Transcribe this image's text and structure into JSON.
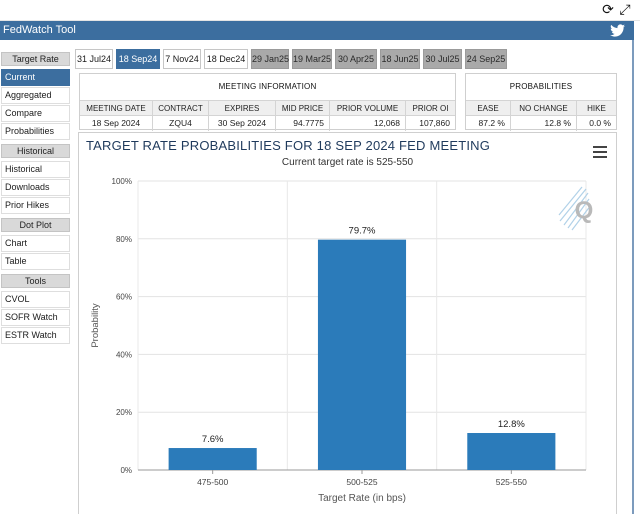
{
  "window": {
    "title": "FedWatch Tool",
    "toolbar_icons": [
      {
        "name": "reload-icon",
        "glyph": "⟳"
      },
      {
        "name": "maximize-icon",
        "glyph": "⤢"
      }
    ]
  },
  "brand": {
    "accent": "#3c6e9f",
    "bar": "#2b7bba",
    "tab_dim": "#a9a9a9"
  },
  "sidebar": {
    "sections": [
      {
        "heading": "Target Rate",
        "items": [
          "Current",
          "Aggregated",
          "Compare",
          "Probabilities"
        ]
      },
      {
        "heading": "Historical",
        "items": [
          "Historical",
          "Downloads",
          "Prior Hikes"
        ]
      },
      {
        "heading": "Dot Plot",
        "items": [
          "Chart",
          "Table"
        ]
      },
      {
        "heading": "Tools",
        "items": [
          "CVOL",
          "SOFR Watch",
          "ESTR Watch"
        ]
      }
    ],
    "active_item": "Current"
  },
  "tabs": [
    {
      "label": "31 Jul24",
      "state": "normal"
    },
    {
      "label": "18 Sep24",
      "state": "selected"
    },
    {
      "label": "7 Nov24",
      "state": "normal"
    },
    {
      "label": "18 Dec24",
      "state": "normal"
    },
    {
      "label": "29 Jan25",
      "state": "dim"
    },
    {
      "label": "19 Mar25",
      "state": "dim"
    },
    {
      "label": "30 Apr25",
      "state": "dim"
    },
    {
      "label": "18 Jun25",
      "state": "dim"
    },
    {
      "label": "30 Jul25",
      "state": "dim"
    },
    {
      "label": "24 Sep25",
      "state": "dim"
    }
  ],
  "meeting_info": {
    "title": "MEETING INFORMATION",
    "headers": [
      "MEETING DATE",
      "CONTRACT",
      "EXPIRES",
      "MID PRICE",
      "PRIOR VOLUME",
      "PRIOR OI"
    ],
    "values": [
      "18 Sep 2024",
      "ZQU4",
      "30 Sep 2024",
      "94.7775",
      "12,068",
      "107,860"
    ]
  },
  "probabilities": {
    "title": "PROBABILITIES",
    "headers": [
      "EASE",
      "NO CHANGE",
      "HIKE"
    ],
    "values": [
      "87.2 %",
      "12.8 %",
      "0.0 %"
    ]
  },
  "chart_data": {
    "type": "bar",
    "title": "TARGET RATE PROBABILITIES FOR 18 SEP 2024 FED MEETING",
    "subtitle": "Current target rate is 525-550",
    "categories": [
      "475-500",
      "500-525",
      "525-550"
    ],
    "values": [
      7.6,
      79.7,
      12.8
    ],
    "data_labels": [
      "7.6%",
      "79.7%",
      "12.8%"
    ],
    "xlabel": "Target Rate (in bps)",
    "ylabel": "Probability",
    "ylim": [
      0,
      100
    ],
    "yticks": [
      0,
      20,
      40,
      60,
      80,
      100
    ],
    "ytick_labels": [
      "0%",
      "20%",
      "40%",
      "60%",
      "80%",
      "100%"
    ],
    "grid": true
  }
}
